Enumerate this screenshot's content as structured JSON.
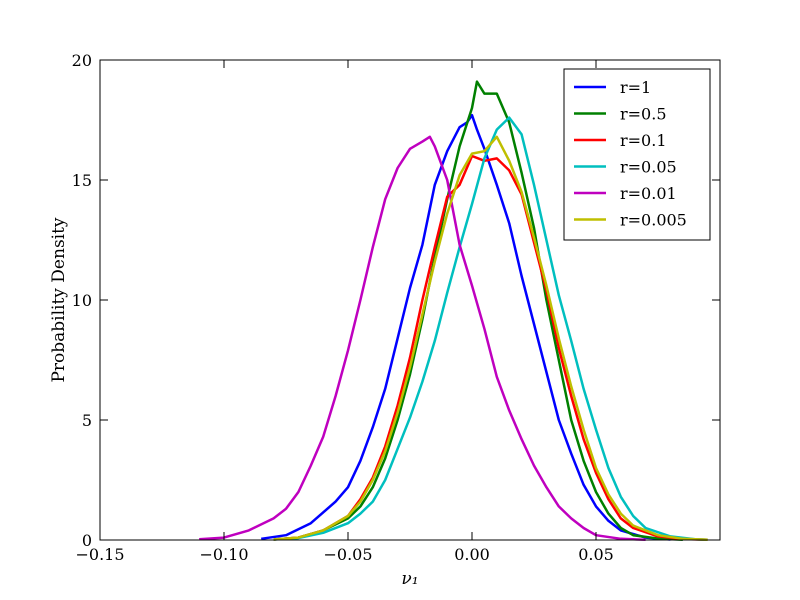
{
  "chart_data": {
    "type": "line",
    "title": "",
    "xlabel": "ν₁",
    "ylabel": "Probability Density",
    "xlim": [
      -0.15,
      0.1
    ],
    "ylim": [
      0,
      20
    ],
    "xticks": [
      -0.15,
      -0.1,
      -0.05,
      0.0,
      0.05
    ],
    "xtick_labels": [
      "−0.15",
      "−0.10",
      "−0.05",
      "0.00",
      "0.05"
    ],
    "yticks": [
      0,
      5,
      10,
      15,
      20
    ],
    "ytick_labels": [
      "0",
      "5",
      "10",
      "15",
      "20"
    ],
    "grid": false,
    "legend_position": "top-right",
    "series": [
      {
        "name": "r=1",
        "color": "#0000ff",
        "points": [
          [
            -0.085,
            0.05
          ],
          [
            -0.075,
            0.2
          ],
          [
            -0.065,
            0.7
          ],
          [
            -0.055,
            1.6
          ],
          [
            -0.05,
            2.2
          ],
          [
            -0.045,
            3.3
          ],
          [
            -0.04,
            4.7
          ],
          [
            -0.035,
            6.3
          ],
          [
            -0.03,
            8.4
          ],
          [
            -0.025,
            10.5
          ],
          [
            -0.02,
            12.3
          ],
          [
            -0.015,
            14.8
          ],
          [
            -0.01,
            16.2
          ],
          [
            -0.005,
            17.2
          ],
          [
            -0.002,
            17.4
          ],
          [
            0.0,
            17.7
          ],
          [
            0.002,
            17.1
          ],
          [
            0.005,
            16.3
          ],
          [
            0.01,
            14.8
          ],
          [
            0.015,
            13.2
          ],
          [
            0.02,
            11.0
          ],
          [
            0.025,
            9.0
          ],
          [
            0.03,
            7.0
          ],
          [
            0.035,
            5.0
          ],
          [
            0.04,
            3.6
          ],
          [
            0.045,
            2.3
          ],
          [
            0.05,
            1.4
          ],
          [
            0.055,
            0.8
          ],
          [
            0.06,
            0.4
          ],
          [
            0.07,
            0.1
          ],
          [
            0.08,
            0.02
          ]
        ]
      },
      {
        "name": "r=0.5",
        "color": "#008000",
        "points": [
          [
            -0.08,
            0.02
          ],
          [
            -0.07,
            0.1
          ],
          [
            -0.06,
            0.4
          ],
          [
            -0.05,
            0.9
          ],
          [
            -0.045,
            1.4
          ],
          [
            -0.04,
            2.2
          ],
          [
            -0.035,
            3.4
          ],
          [
            -0.03,
            5.0
          ],
          [
            -0.025,
            6.9
          ],
          [
            -0.02,
            9.2
          ],
          [
            -0.015,
            11.8
          ],
          [
            -0.01,
            14.2
          ],
          [
            -0.005,
            16.4
          ],
          [
            0.0,
            18.0
          ],
          [
            0.002,
            19.1
          ],
          [
            0.005,
            18.6
          ],
          [
            0.01,
            18.6
          ],
          [
            0.015,
            17.4
          ],
          [
            0.02,
            15.3
          ],
          [
            0.025,
            13.0
          ],
          [
            0.03,
            10.0
          ],
          [
            0.035,
            7.5
          ],
          [
            0.04,
            5.0
          ],
          [
            0.045,
            3.3
          ],
          [
            0.05,
            2.0
          ],
          [
            0.055,
            1.1
          ],
          [
            0.06,
            0.5
          ],
          [
            0.065,
            0.2
          ],
          [
            0.075,
            0.06
          ],
          [
            0.085,
            0.01
          ]
        ]
      },
      {
        "name": "r=0.1",
        "color": "#ff0000",
        "points": [
          [
            -0.08,
            0.02
          ],
          [
            -0.07,
            0.1
          ],
          [
            -0.06,
            0.4
          ],
          [
            -0.05,
            1.0
          ],
          [
            -0.045,
            1.7
          ],
          [
            -0.04,
            2.6
          ],
          [
            -0.035,
            3.9
          ],
          [
            -0.03,
            5.6
          ],
          [
            -0.025,
            7.6
          ],
          [
            -0.02,
            10.0
          ],
          [
            -0.015,
            12.2
          ],
          [
            -0.01,
            14.3
          ],
          [
            -0.005,
            14.8
          ],
          [
            0.0,
            16.0
          ],
          [
            0.005,
            15.8
          ],
          [
            0.01,
            15.9
          ],
          [
            0.015,
            15.4
          ],
          [
            0.02,
            14.4
          ],
          [
            0.025,
            12.4
          ],
          [
            0.03,
            10.4
          ],
          [
            0.035,
            8.0
          ],
          [
            0.04,
            6.0
          ],
          [
            0.045,
            4.2
          ],
          [
            0.05,
            2.8
          ],
          [
            0.055,
            1.7
          ],
          [
            0.06,
            0.9
          ],
          [
            0.065,
            0.5
          ],
          [
            0.075,
            0.15
          ],
          [
            0.085,
            0.04
          ],
          [
            0.095,
            0.01
          ]
        ]
      },
      {
        "name": "r=0.05",
        "color": "#00bfbf",
        "points": [
          [
            -0.08,
            0.02
          ],
          [
            -0.07,
            0.08
          ],
          [
            -0.06,
            0.3
          ],
          [
            -0.05,
            0.7
          ],
          [
            -0.045,
            1.1
          ],
          [
            -0.04,
            1.6
          ],
          [
            -0.035,
            2.5
          ],
          [
            -0.03,
            3.8
          ],
          [
            -0.025,
            5.1
          ],
          [
            -0.02,
            6.6
          ],
          [
            -0.015,
            8.3
          ],
          [
            -0.01,
            10.3
          ],
          [
            -0.005,
            12.2
          ],
          [
            0.0,
            14.0
          ],
          [
            0.005,
            15.9
          ],
          [
            0.01,
            17.1
          ],
          [
            0.015,
            17.6
          ],
          [
            0.02,
            16.9
          ],
          [
            0.025,
            14.8
          ],
          [
            0.03,
            12.5
          ],
          [
            0.035,
            10.2
          ],
          [
            0.04,
            8.3
          ],
          [
            0.045,
            6.3
          ],
          [
            0.05,
            4.6
          ],
          [
            0.055,
            3.0
          ],
          [
            0.06,
            1.8
          ],
          [
            0.065,
            1.0
          ],
          [
            0.07,
            0.5
          ],
          [
            0.08,
            0.15
          ],
          [
            0.09,
            0.03
          ],
          [
            0.095,
            0.01
          ]
        ]
      },
      {
        "name": "r=0.01",
        "color": "#bf00bf",
        "points": [
          [
            -0.11,
            0.03
          ],
          [
            -0.1,
            0.1
          ],
          [
            -0.09,
            0.4
          ],
          [
            -0.08,
            0.9
          ],
          [
            -0.075,
            1.3
          ],
          [
            -0.07,
            2.0
          ],
          [
            -0.065,
            3.1
          ],
          [
            -0.06,
            4.3
          ],
          [
            -0.055,
            6.0
          ],
          [
            -0.05,
            7.9
          ],
          [
            -0.045,
            10.0
          ],
          [
            -0.04,
            12.2
          ],
          [
            -0.035,
            14.2
          ],
          [
            -0.03,
            15.5
          ],
          [
            -0.025,
            16.3
          ],
          [
            -0.02,
            16.6
          ],
          [
            -0.017,
            16.8
          ],
          [
            -0.015,
            16.4
          ],
          [
            -0.01,
            15.0
          ],
          [
            -0.005,
            12.3
          ],
          [
            0.0,
            10.6
          ],
          [
            0.005,
            8.8
          ],
          [
            0.01,
            6.8
          ],
          [
            0.015,
            5.4
          ],
          [
            0.02,
            4.2
          ],
          [
            0.025,
            3.1
          ],
          [
            0.03,
            2.2
          ],
          [
            0.035,
            1.4
          ],
          [
            0.04,
            0.9
          ],
          [
            0.045,
            0.5
          ],
          [
            0.05,
            0.2
          ],
          [
            0.06,
            0.05
          ],
          [
            0.07,
            0.01
          ]
        ]
      },
      {
        "name": "r=0.005",
        "color": "#bfbf00",
        "points": [
          [
            -0.08,
            0.02
          ],
          [
            -0.07,
            0.1
          ],
          [
            -0.06,
            0.4
          ],
          [
            -0.05,
            1.0
          ],
          [
            -0.045,
            1.6
          ],
          [
            -0.04,
            2.5
          ],
          [
            -0.035,
            3.7
          ],
          [
            -0.03,
            5.3
          ],
          [
            -0.025,
            7.2
          ],
          [
            -0.02,
            9.4
          ],
          [
            -0.015,
            11.6
          ],
          [
            -0.01,
            13.6
          ],
          [
            -0.005,
            15.2
          ],
          [
            0.0,
            16.1
          ],
          [
            0.005,
            16.2
          ],
          [
            0.01,
            16.8
          ],
          [
            0.015,
            15.8
          ],
          [
            0.02,
            14.5
          ],
          [
            0.025,
            12.6
          ],
          [
            0.03,
            10.6
          ],
          [
            0.035,
            8.4
          ],
          [
            0.04,
            6.4
          ],
          [
            0.045,
            4.6
          ],
          [
            0.05,
            3.0
          ],
          [
            0.055,
            1.9
          ],
          [
            0.06,
            1.1
          ],
          [
            0.065,
            0.6
          ],
          [
            0.075,
            0.2
          ],
          [
            0.085,
            0.05
          ],
          [
            0.095,
            0.01
          ]
        ]
      }
    ]
  }
}
